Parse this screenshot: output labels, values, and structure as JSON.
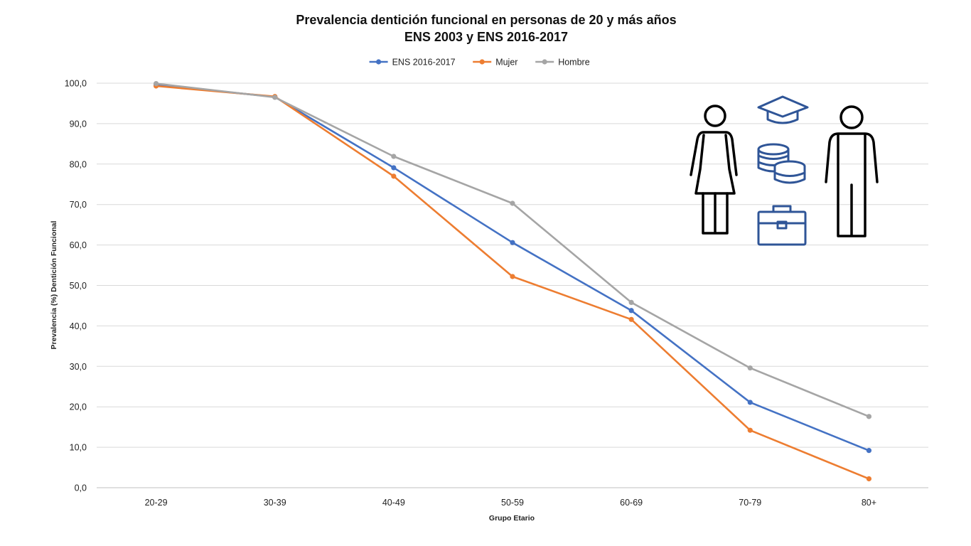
{
  "chart_data": {
    "type": "line",
    "title": "Prevalencia dentición funcional en personas de 20 y más años",
    "subtitle": "ENS 2003 y ENS 2016-2017",
    "xlabel": "Grupo Etario",
    "ylabel": "Prevalencia (%) Dentición Funcional",
    "categories": [
      "20-29",
      "30-39",
      "40-49",
      "50-59",
      "60-69",
      "70-79",
      "80+"
    ],
    "ylim": [
      0,
      100
    ],
    "yticks": [
      "0,0",
      "10,0",
      "20,0",
      "30,0",
      "40,0",
      "50,0",
      "60,0",
      "70,0",
      "80,0",
      "90,0",
      "100,0"
    ],
    "grid": true,
    "legend_position": "top-center",
    "series": [
      {
        "name": "ENS 2016-2017",
        "color": "#4472c4",
        "values": [
          99.6,
          96.6,
          79.1,
          60.6,
          43.8,
          21.1,
          9.2
        ]
      },
      {
        "name": "Mujer",
        "color": "#ed7d31",
        "values": [
          99.3,
          96.7,
          77.0,
          52.2,
          41.6,
          14.2,
          2.2
        ]
      },
      {
        "name": "Hombre",
        "color": "#a5a5a5",
        "values": [
          99.9,
          96.5,
          81.9,
          70.3,
          45.8,
          29.6,
          17.6
        ]
      }
    ]
  },
  "icons": [
    "woman-icon",
    "graduation-cap-icon",
    "coins-icon",
    "briefcase-icon",
    "man-icon"
  ]
}
